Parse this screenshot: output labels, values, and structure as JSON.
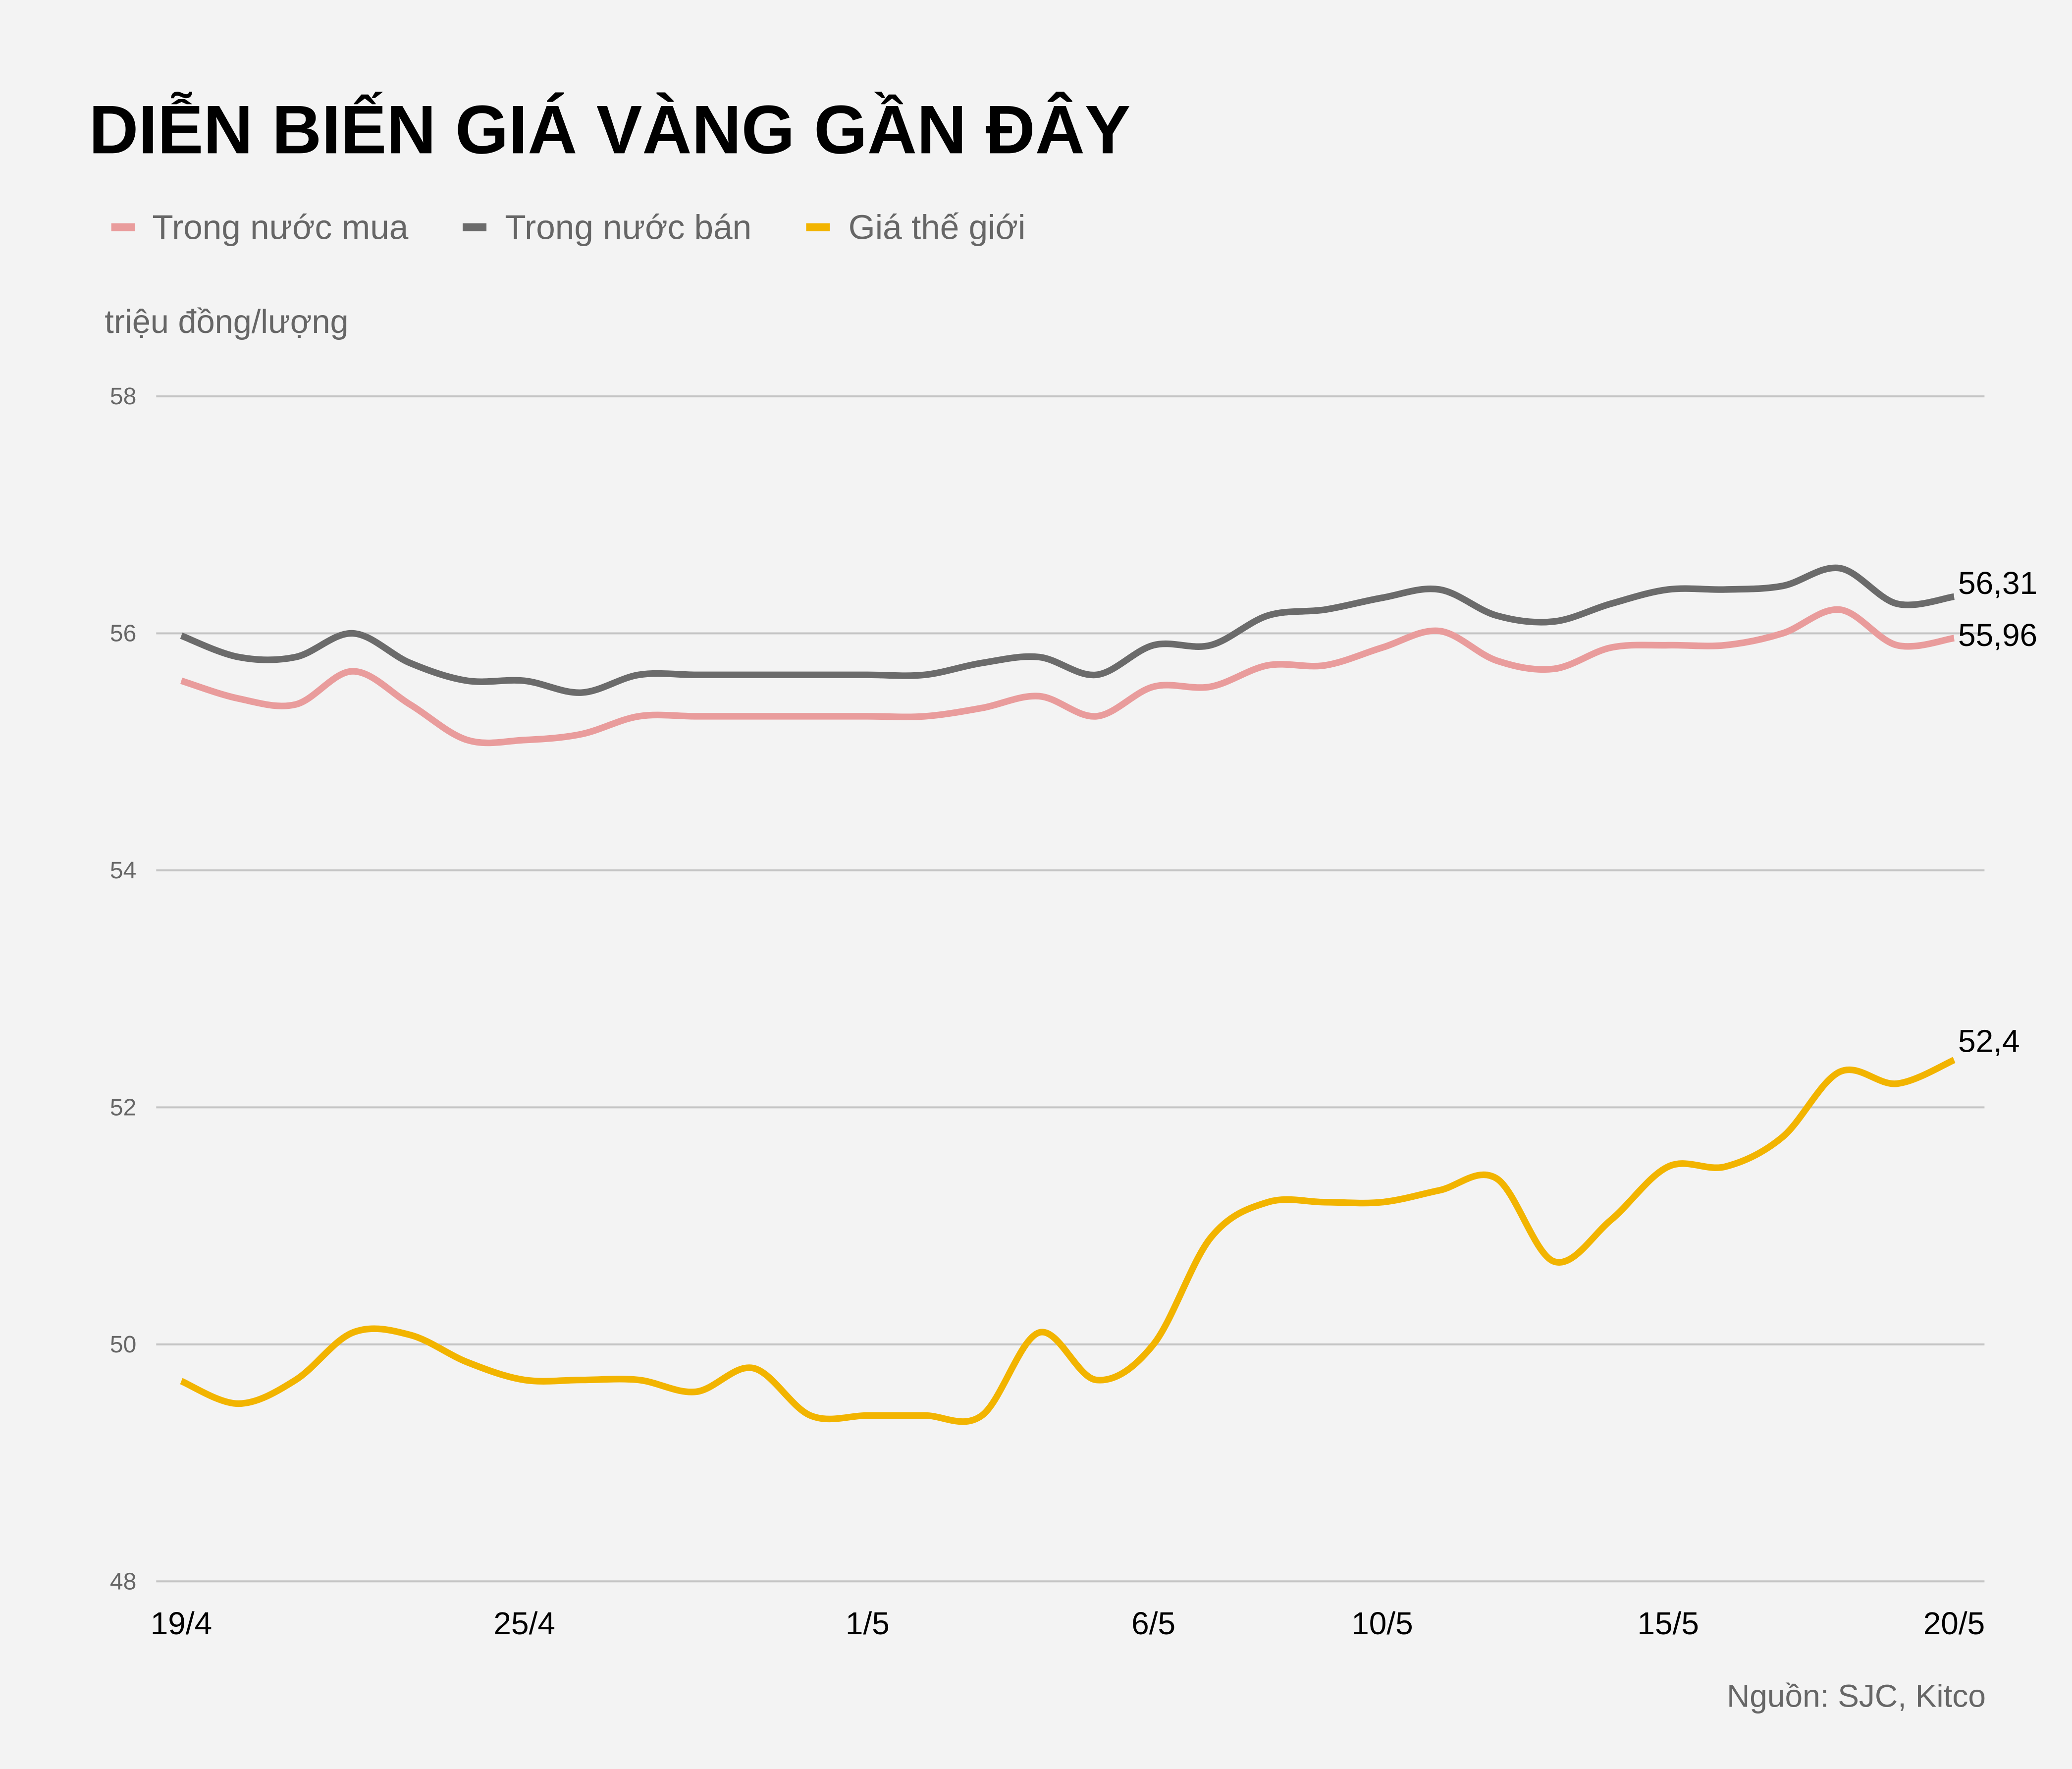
{
  "chart_data": {
    "type": "line",
    "title": "DIỄN BIẾN GIÁ VÀNG GẦN ĐÂY",
    "ylabel": "triệu đồng/lượng",
    "source": "Nguồn: SJC, Kitco",
    "ylim": [
      48,
      58
    ],
    "yticks": [
      "48",
      "50",
      "52",
      "54",
      "56",
      "58"
    ],
    "grid": true,
    "legend_placement": "top-left",
    "x": [
      "19/4",
      "20/4",
      "21/4",
      "22/4",
      "23/4",
      "24/4",
      "25/4",
      "26/4",
      "27/4",
      "28/4",
      "29/4",
      "30/4",
      "1/5",
      "2/5",
      "3/5",
      "4/5",
      "5/5",
      "6/5",
      "7/5",
      "8/5",
      "9/5",
      "10/5",
      "11/5",
      "12/5",
      "13/5",
      "14/5",
      "15/5",
      "16/5",
      "17/5",
      "18/5",
      "19/5",
      "20/5"
    ],
    "xticks": [
      "19/4",
      "25/4",
      "1/5",
      "6/5",
      "10/5",
      "15/5",
      "20/5"
    ],
    "series": [
      {
        "name": "Trong nước mua",
        "color": "#E99C9C",
        "end_label": "55,96",
        "values": [
          55.6,
          55.45,
          55.4,
          55.68,
          55.4,
          55.1,
          55.1,
          55.15,
          55.3,
          55.3,
          55.3,
          55.3,
          55.3,
          55.3,
          55.37,
          55.47,
          55.3,
          55.55,
          55.55,
          55.73,
          55.73,
          55.88,
          56.02,
          55.77,
          55.7,
          55.88,
          55.9,
          55.9,
          56.0,
          56.2,
          55.9,
          55.96
        ]
      },
      {
        "name": "Trong nước bán",
        "color": "#6B6B6B",
        "end_label": "56,31",
        "values": [
          55.98,
          55.8,
          55.8,
          56.0,
          55.75,
          55.6,
          55.6,
          55.5,
          55.65,
          55.65,
          55.65,
          55.65,
          55.65,
          55.65,
          55.75,
          55.8,
          55.65,
          55.9,
          55.9,
          56.15,
          56.2,
          56.3,
          56.37,
          56.15,
          56.1,
          56.25,
          56.37,
          56.37,
          56.4,
          56.55,
          56.25,
          56.31
        ]
      },
      {
        "name": "Giá thế giới",
        "color": "#F2B400",
        "end_label": "52,4",
        "values": [
          49.69,
          49.5,
          49.7,
          50.1,
          50.08,
          49.85,
          49.7,
          49.7,
          49.7,
          49.6,
          49.8,
          49.4,
          49.4,
          49.4,
          49.4,
          50.1,
          49.7,
          50.0,
          50.9,
          51.2,
          51.2,
          51.2,
          51.3,
          51.4,
          50.7,
          51.05,
          51.5,
          51.5,
          51.75,
          52.3,
          52.2,
          52.4
        ]
      }
    ]
  }
}
